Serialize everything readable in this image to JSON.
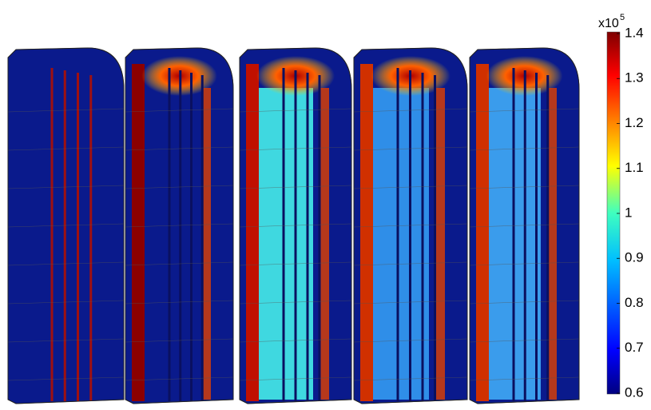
{
  "colorbar": {
    "multiplier_base": "x10",
    "multiplier_exponent": "5",
    "range": [
      0.6,
      1.4
    ],
    "ticks": [
      0.6,
      0.7,
      0.8,
      0.9,
      1,
      1.1,
      1.2,
      1.3,
      1.4
    ]
  }
}
